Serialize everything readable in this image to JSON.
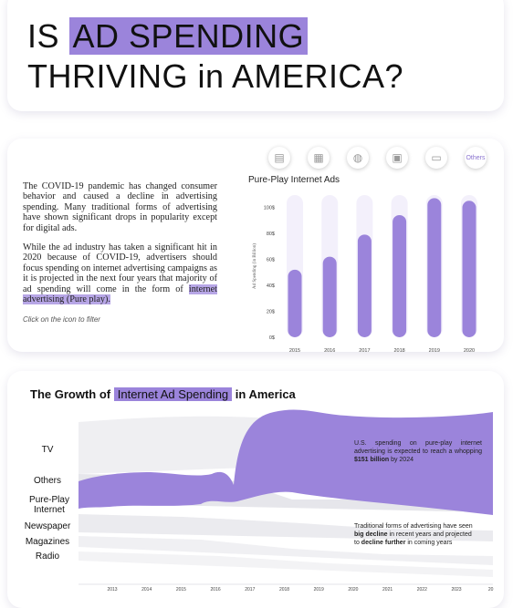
{
  "header": {
    "title_pre": "IS",
    "title_highlight": "AD SPENDING",
    "title_line2": "THRIVING in AMERICA?"
  },
  "intro": {
    "paragraph1": "The COVID-19 pandemic has changed consumer behavior and caused a decline in advertising spending. Many traditional forms of advertising have shown significant drops in popularity except for digital ads.",
    "paragraph2_pre": "While the ad industry has taken a significant hit in 2020 because of COVID-19, advertisers should focus spending on internet advertising campaigns as it is projected in the next four years that majority of ad spending will come in the form of ",
    "paragraph2_highlight": "internet advertising (Pure play).",
    "hint": "Click on the icon to filter"
  },
  "filters": [
    {
      "icon": "magazine-icon",
      "glyph": "▤",
      "label": ""
    },
    {
      "icon": "newspaper-icon",
      "glyph": "▦",
      "label": ""
    },
    {
      "icon": "globe-icon",
      "glyph": "◍",
      "label": ""
    },
    {
      "icon": "radio-icon",
      "glyph": "▣",
      "label": ""
    },
    {
      "icon": "tv-icon",
      "glyph": "▭",
      "label": ""
    },
    {
      "icon": "",
      "glyph": "",
      "label": "Others"
    }
  ],
  "colors": {
    "accent": "#9b84db",
    "bar": "#9b84db",
    "track": "#f3f0fb",
    "stream_grey": "#ececf0"
  },
  "chart_data": [
    {
      "type": "bar",
      "title": "Pure-Play Internet Ads",
      "ylabel": "Ad Spending (in Billion)",
      "categories": [
        "2015",
        "2016",
        "2017",
        "2018",
        "2019",
        "2020"
      ],
      "values": [
        52,
        62,
        79,
        94,
        107,
        105
      ],
      "ylim": [
        0,
        108
      ],
      "yticks": [
        "0$",
        "20$",
        "40$",
        "60$",
        "80$",
        "100$"
      ],
      "ytick_values": [
        0,
        20,
        40,
        60,
        80,
        100
      ]
    },
    {
      "type": "area",
      "title_pre": "The Growth of",
      "title_highlight": "Internet Ad Spending",
      "title_post": "in America",
      "categories": [
        "TV",
        "Others",
        "Pure-Play Internet",
        "Newspaper",
        "Magazines",
        "Radio"
      ],
      "x": [
        "2013",
        "2014",
        "2015",
        "2016",
        "2017",
        "2018",
        "2019",
        "2020",
        "2021",
        "2022",
        "2023",
        "20"
      ],
      "note1_pre": "U.S. spending on pure-play internet advertising is expected to reach a whopping ",
      "note1_bold": "$151 billion",
      "note1_post": " by 2024",
      "note2_pre": "Traditional forms of advertising have seen ",
      "note2_bold1": "big decline",
      "note2_mid": " in recent years and projected to ",
      "note2_bold2": "decline further",
      "note2_post": " in coming years"
    }
  ]
}
